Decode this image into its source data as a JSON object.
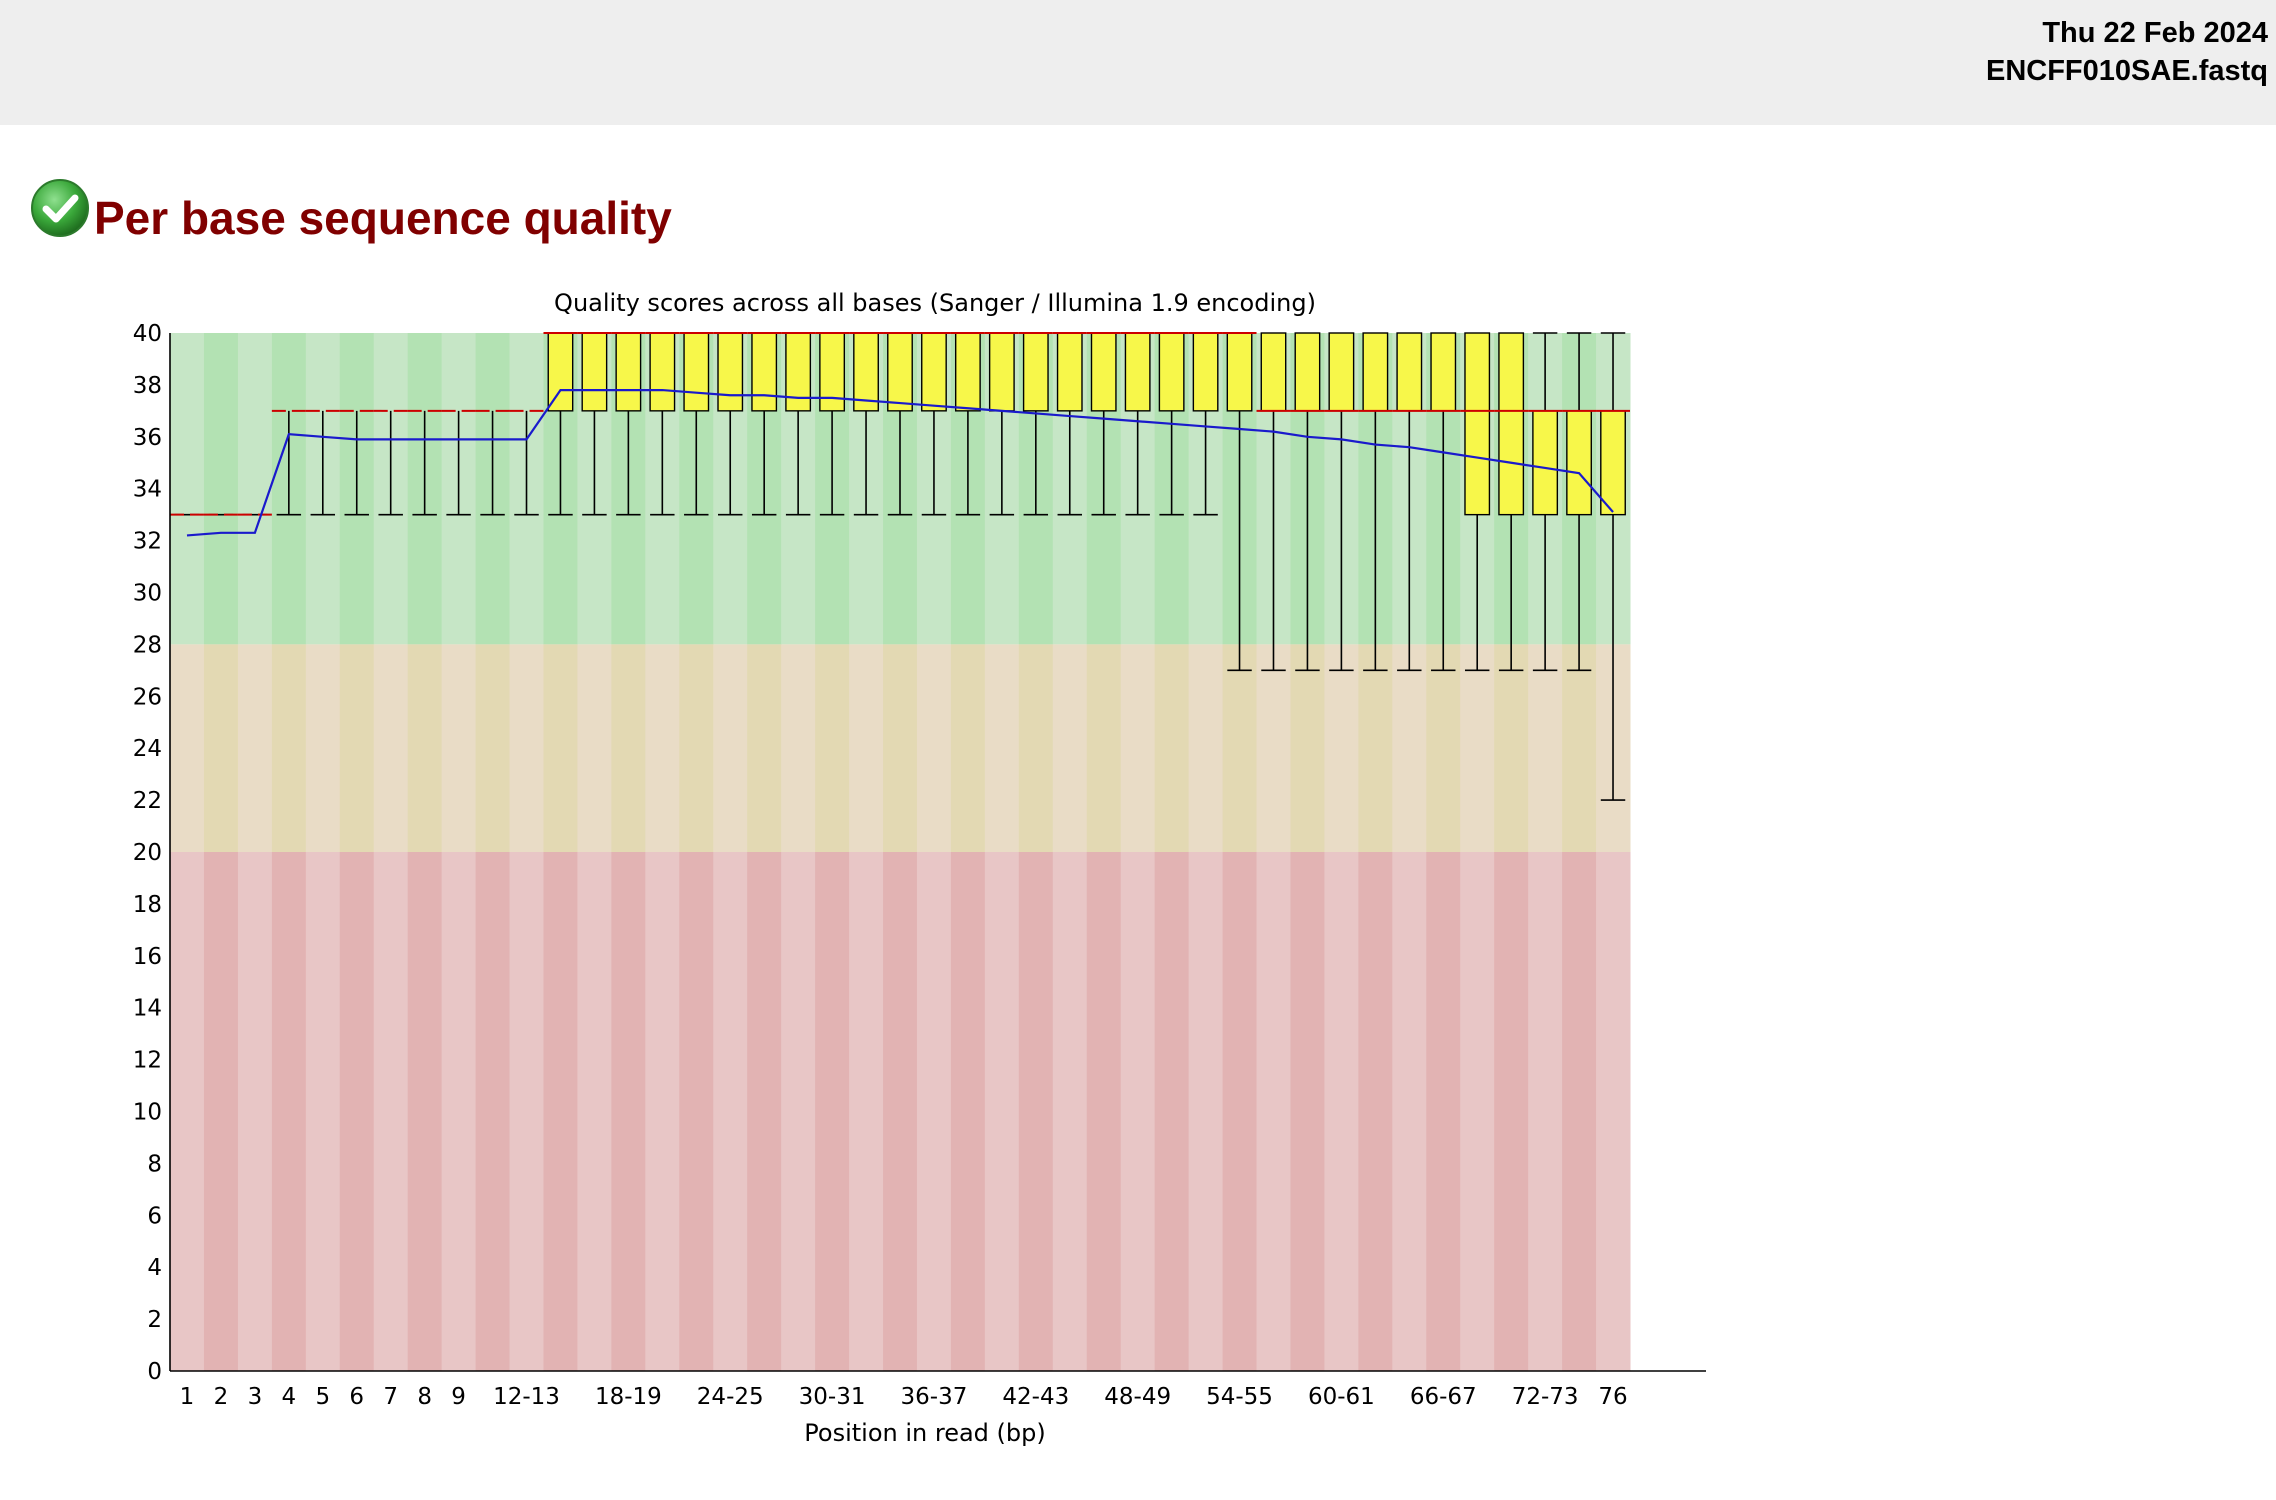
{
  "header": {
    "date": "Thu 22 Feb 2024",
    "filename": "ENCFF010SAE.fastq"
  },
  "module": {
    "title": "Per base sequence quality",
    "status_icon": "pass-check-icon",
    "status": "pass"
  },
  "colors": {
    "good_zone": [
      "#c6e6c6",
      "#b3e2b3"
    ],
    "warn_zone": [
      "#e9dcc6",
      "#e3d9b3"
    ],
    "fail_zone": [
      "#e8c6c6",
      "#e2b3b3"
    ],
    "box_fill": "#f7f74a",
    "median": "#cc0000",
    "mean_line": "#1a1acc",
    "whisker": "#000000"
  },
  "chart_data": {
    "type": "boxplot",
    "title": "Quality scores across all bases (Sanger / Illumina 1.9 encoding)",
    "xlabel": "Position in read (bp)",
    "ylabel": "",
    "ylim": [
      0,
      40
    ],
    "yticks": [
      0,
      2,
      4,
      6,
      8,
      10,
      12,
      14,
      16,
      18,
      20,
      22,
      24,
      26,
      28,
      30,
      32,
      34,
      36,
      38,
      40
    ],
    "zones": {
      "good": [
        28,
        40
      ],
      "warning": [
        20,
        28
      ],
      "fail": [
        0,
        20
      ]
    },
    "categories": [
      "1",
      "2",
      "3",
      "4",
      "5",
      "6",
      "7",
      "8",
      "9",
      "10-11",
      "12-13",
      "14-15",
      "16-17",
      "18-19",
      "20-21",
      "22-23",
      "24-25",
      "26-27",
      "28-29",
      "30-31",
      "32-33",
      "34-35",
      "36-37",
      "38-39",
      "40-41",
      "42-43",
      "44-45",
      "46-47",
      "48-49",
      "50-51",
      "52-53",
      "54-55",
      "56-57",
      "58-59",
      "60-61",
      "62-63",
      "64-65",
      "66-67",
      "68-69",
      "70-71",
      "72-73",
      "74-75",
      "76"
    ],
    "tick_labels_shown": [
      "1",
      "2",
      "3",
      "4",
      "5",
      "6",
      "7",
      "8",
      "9",
      "12-13",
      "18-19",
      "24-25",
      "30-31",
      "36-37",
      "42-43",
      "48-49",
      "54-55",
      "60-61",
      "66-67",
      "72-73",
      "76"
    ],
    "q1": [
      33,
      33,
      33,
      37,
      37,
      37,
      37,
      37,
      37,
      37,
      37,
      37,
      37,
      37,
      37,
      37,
      37,
      37,
      37,
      37,
      37,
      37,
      37,
      37,
      37,
      37,
      37,
      37,
      37,
      37,
      37,
      37,
      37,
      37,
      37,
      37,
      37,
      37,
      33,
      33,
      33,
      33,
      33
    ],
    "median": [
      33,
      33,
      33,
      37,
      37,
      37,
      37,
      37,
      37,
      37,
      37,
      40,
      40,
      40,
      40,
      40,
      40,
      40,
      40,
      40,
      40,
      40,
      40,
      40,
      40,
      40,
      40,
      40,
      40,
      40,
      40,
      40,
      37,
      37,
      37,
      37,
      37,
      37,
      37,
      37,
      37,
      37,
      37
    ],
    "q3": [
      33,
      33,
      33,
      37,
      37,
      37,
      37,
      37,
      37,
      37,
      37,
      40,
      40,
      40,
      40,
      40,
      40,
      40,
      40,
      40,
      40,
      40,
      40,
      40,
      40,
      40,
      40,
      40,
      40,
      40,
      40,
      40,
      40,
      40,
      40,
      40,
      40,
      40,
      40,
      40,
      37,
      37,
      37
    ],
    "p10": [
      33,
      33,
      33,
      33,
      33,
      33,
      33,
      33,
      33,
      33,
      33,
      33,
      33,
      33,
      33,
      33,
      33,
      33,
      33,
      33,
      33,
      33,
      33,
      33,
      33,
      33,
      33,
      33,
      33,
      33,
      33,
      27,
      27,
      27,
      27,
      27,
      27,
      27,
      27,
      27,
      27,
      27,
      22
    ],
    "p90": [
      33,
      33,
      33,
      37,
      37,
      37,
      37,
      37,
      37,
      37,
      37,
      40,
      40,
      40,
      40,
      40,
      40,
      40,
      40,
      40,
      40,
      40,
      40,
      40,
      40,
      40,
      40,
      40,
      40,
      40,
      40,
      40,
      40,
      40,
      40,
      40,
      40,
      40,
      40,
      40,
      40,
      40,
      40
    ],
    "mean": [
      32.2,
      32.3,
      32.3,
      36.1,
      36.0,
      35.9,
      35.9,
      35.9,
      35.9,
      35.9,
      35.9,
      37.8,
      37.8,
      37.8,
      37.8,
      37.7,
      37.6,
      37.6,
      37.5,
      37.5,
      37.4,
      37.3,
      37.2,
      37.1,
      37.0,
      36.9,
      36.8,
      36.7,
      36.6,
      36.5,
      36.4,
      36.3,
      36.2,
      36.0,
      35.9,
      35.7,
      35.6,
      35.4,
      35.2,
      35.0,
      34.8,
      34.6,
      33.1
    ]
  }
}
